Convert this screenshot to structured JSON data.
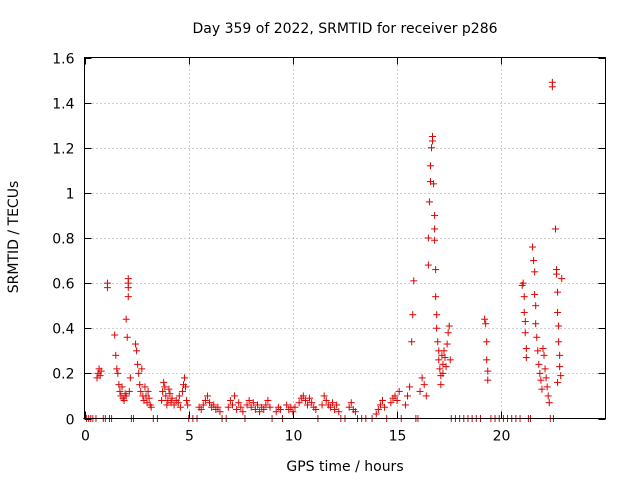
{
  "chart_data": {
    "type": "scatter",
    "title": "Day 359 of 2022, SRMTID for receiver p286",
    "xlabel": "GPS time / hours",
    "ylabel": "SRMTID / TECUs",
    "xlim": [
      0,
      25
    ],
    "ylim": [
      0,
      1.6
    ],
    "x_ticks": [
      0,
      5,
      10,
      15,
      20
    ],
    "x_tick_labels": [
      "0",
      "5",
      "10",
      "15",
      "20"
    ],
    "y_ticks": [
      0,
      0.2,
      0.4,
      0.6,
      0.8,
      1.0,
      1.2,
      1.4,
      1.6
    ],
    "y_tick_labels": [
      "0",
      "0.2",
      "0.4",
      "0.6",
      "0.8",
      "1",
      "1.2",
      "1.4",
      "1.6"
    ],
    "grid": true,
    "marker": "+",
    "marker_color": "#e00000",
    "series": [
      {
        "name": "SRMTID",
        "points": [
          [
            0.1,
            0
          ],
          [
            0.2,
            0
          ],
          [
            0.3,
            0
          ],
          [
            0.4,
            0
          ],
          [
            0.55,
            0
          ],
          [
            0.65,
            0.2
          ],
          [
            0.7,
            0.22
          ],
          [
            0.75,
            0.19
          ],
          [
            0.6,
            0.18
          ],
          [
            0.8,
            0.21
          ],
          [
            0.9,
            0
          ],
          [
            1.0,
            0
          ],
          [
            1.1,
            0.6
          ],
          [
            1.1,
            0.58
          ],
          [
            1.2,
            0
          ],
          [
            1.3,
            0
          ],
          [
            1.45,
            0.37
          ],
          [
            1.5,
            0.28
          ],
          [
            1.55,
            0.22
          ],
          [
            1.6,
            0.2
          ],
          [
            1.65,
            0.15
          ],
          [
            1.7,
            0.12
          ],
          [
            1.75,
            0.1
          ],
          [
            1.8,
            0.14
          ],
          [
            1.85,
            0.09
          ],
          [
            1.9,
            0.08
          ],
          [
            1.95,
            0.11
          ],
          [
            2.0,
            0.1
          ],
          [
            2.0,
            0.44
          ],
          [
            2.05,
            0.36
          ],
          [
            2.1,
            0.62
          ],
          [
            2.1,
            0.6
          ],
          [
            2.1,
            0.54
          ],
          [
            2.1,
            0.58
          ],
          [
            2.15,
            0.12
          ],
          [
            2.2,
            0.18
          ],
          [
            2.25,
            0
          ],
          [
            2.35,
            0
          ],
          [
            2.45,
            0.33
          ],
          [
            2.5,
            0.3
          ],
          [
            2.55,
            0.24
          ],
          [
            2.6,
            0.2
          ],
          [
            2.65,
            0.15
          ],
          [
            2.7,
            0.12
          ],
          [
            2.75,
            0.22
          ],
          [
            2.8,
            0.1
          ],
          [
            2.85,
            0.08
          ],
          [
            2.9,
            0.14
          ],
          [
            2.95,
            0.1
          ],
          [
            3.0,
            0.07
          ],
          [
            3.05,
            0.12
          ],
          [
            3.1,
            0.09
          ],
          [
            3.15,
            0.06
          ],
          [
            3.2,
            0.05
          ],
          [
            3.3,
            0
          ],
          [
            3.5,
            0
          ],
          [
            3.7,
            0.08
          ],
          [
            3.75,
            0.12
          ],
          [
            3.8,
            0.16
          ],
          [
            3.85,
            0.14
          ],
          [
            3.9,
            0.1
          ],
          [
            3.95,
            0.06
          ],
          [
            4.0,
            0.08
          ],
          [
            4.05,
            0.13
          ],
          [
            4.1,
            0.11
          ],
          [
            4.15,
            0.07
          ],
          [
            4.2,
            0.09
          ],
          [
            4.3,
            0.06
          ],
          [
            4.4,
            0.08
          ],
          [
            4.5,
            0.07
          ],
          [
            4.55,
            0.1
          ],
          [
            4.6,
            0.05
          ],
          [
            4.7,
            0.12
          ],
          [
            4.75,
            0.15
          ],
          [
            4.8,
            0.18
          ],
          [
            4.85,
            0.14
          ],
          [
            4.9,
            0.08
          ],
          [
            4.95,
            0.06
          ],
          [
            5.0,
            0
          ],
          [
            5.2,
            0
          ],
          [
            5.4,
            0
          ],
          [
            5.5,
            0.05
          ],
          [
            5.6,
            0.04
          ],
          [
            5.7,
            0.06
          ],
          [
            5.8,
            0.08
          ],
          [
            5.9,
            0.1
          ],
          [
            6.0,
            0.07
          ],
          [
            6.1,
            0.05
          ],
          [
            6.2,
            0.06
          ],
          [
            6.3,
            0.04
          ],
          [
            6.4,
            0.05
          ],
          [
            6.5,
            0.03
          ],
          [
            6.6,
            0
          ],
          [
            6.8,
            0
          ],
          [
            6.9,
            0.05
          ],
          [
            7.0,
            0.08
          ],
          [
            7.1,
            0.06
          ],
          [
            7.2,
            0.1
          ],
          [
            7.3,
            0.04
          ],
          [
            7.4,
            0.07
          ],
          [
            7.5,
            0.05
          ],
          [
            7.6,
            0.03
          ],
          [
            7.7,
            0
          ],
          [
            7.8,
            0.06
          ],
          [
            7.9,
            0.08
          ],
          [
            8.0,
            0.05
          ],
          [
            8.1,
            0.07
          ],
          [
            8.2,
            0.04
          ],
          [
            8.3,
            0.06
          ],
          [
            8.4,
            0.03
          ],
          [
            8.5,
            0.05
          ],
          [
            8.6,
            0.04
          ],
          [
            8.7,
            0.06
          ],
          [
            8.8,
            0.08
          ],
          [
            8.9,
            0.05
          ],
          [
            9.0,
            0
          ],
          [
            9.2,
            0.03
          ],
          [
            9.3,
            0.05
          ],
          [
            9.4,
            0.04
          ],
          [
            9.5,
            0
          ],
          [
            9.7,
            0.06
          ],
          [
            9.8,
            0.04
          ],
          [
            9.9,
            0.05
          ],
          [
            10.0,
            0.03
          ],
          [
            10.1,
            0.05
          ],
          [
            10.3,
            0.07
          ],
          [
            10.4,
            0.09
          ],
          [
            10.5,
            0.1
          ],
          [
            10.6,
            0.08
          ],
          [
            10.7,
            0.06
          ],
          [
            10.8,
            0.09
          ],
          [
            10.9,
            0.07
          ],
          [
            11.0,
            0.05
          ],
          [
            11.1,
            0.04
          ],
          [
            11.2,
            0
          ],
          [
            11.4,
            0.06
          ],
          [
            11.5,
            0.1
          ],
          [
            11.6,
            0.08
          ],
          [
            11.7,
            0.06
          ],
          [
            11.8,
            0.05
          ],
          [
            11.9,
            0.07
          ],
          [
            12.0,
            0.04
          ],
          [
            12.1,
            0.06
          ],
          [
            12.2,
            0.03
          ],
          [
            12.3,
            0
          ],
          [
            12.5,
            0
          ],
          [
            12.7,
            0.05
          ],
          [
            12.8,
            0.07
          ],
          [
            12.9,
            0.04
          ],
          [
            13.0,
            0.03
          ],
          [
            13.1,
            0
          ],
          [
            13.3,
            0
          ],
          [
            13.5,
            0
          ],
          [
            13.8,
            0
          ],
          [
            14.0,
            0.02
          ],
          [
            14.1,
            0.04
          ],
          [
            14.2,
            0.06
          ],
          [
            14.3,
            0.08
          ],
          [
            14.4,
            0.05
          ],
          [
            14.5,
            0
          ],
          [
            14.7,
            0.07
          ],
          [
            14.8,
            0.09
          ],
          [
            14.9,
            0.1
          ],
          [
            15.0,
            0.08
          ],
          [
            15.1,
            0.12
          ],
          [
            15.2,
            0
          ],
          [
            15.4,
            0.06
          ],
          [
            15.5,
            0.1
          ],
          [
            15.6,
            0.14
          ],
          [
            15.7,
            0.34
          ],
          [
            15.75,
            0.46
          ],
          [
            15.8,
            0.61
          ],
          [
            15.9,
            0
          ],
          [
            16.0,
            0
          ],
          [
            16.1,
            0.12
          ],
          [
            16.2,
            0.18
          ],
          [
            16.3,
            0.15
          ],
          [
            16.4,
            0.1
          ],
          [
            16.5,
            0.68
          ],
          [
            16.5,
            0.8
          ],
          [
            16.55,
            0.96
          ],
          [
            16.6,
            1.05
          ],
          [
            16.6,
            1.12
          ],
          [
            16.65,
            1.2
          ],
          [
            16.7,
            1.23
          ],
          [
            16.7,
            1.25
          ],
          [
            16.75,
            1.04
          ],
          [
            16.8,
            0.9
          ],
          [
            16.8,
            0.84
          ],
          [
            16.8,
            0.79
          ],
          [
            16.85,
            0.66
          ],
          [
            16.85,
            0.54
          ],
          [
            16.9,
            0.46
          ],
          [
            16.9,
            0.4
          ],
          [
            16.95,
            0.34
          ],
          [
            17.0,
            0.3
          ],
          [
            17.0,
            0.26
          ],
          [
            17.05,
            0.22
          ],
          [
            17.1,
            0.19
          ],
          [
            17.1,
            0.15
          ],
          [
            17.15,
            0.28
          ],
          [
            17.2,
            0.24
          ],
          [
            17.2,
            0.2
          ],
          [
            17.25,
            0.3
          ],
          [
            17.3,
            0.27
          ],
          [
            17.35,
            0.23
          ],
          [
            17.4,
            0.33
          ],
          [
            17.45,
            0.38
          ],
          [
            17.5,
            0.41
          ],
          [
            17.55,
            0.26
          ],
          [
            17.6,
            0
          ],
          [
            17.8,
            0
          ],
          [
            18.0,
            0
          ],
          [
            18.2,
            0
          ],
          [
            18.4,
            0
          ],
          [
            18.6,
            0
          ],
          [
            18.8,
            0
          ],
          [
            19.0,
            0
          ],
          [
            19.2,
            0.44
          ],
          [
            19.25,
            0.42
          ],
          [
            19.3,
            0.34
          ],
          [
            19.3,
            0.26
          ],
          [
            19.35,
            0.21
          ],
          [
            19.35,
            0.17
          ],
          [
            19.5,
            0
          ],
          [
            19.7,
            0
          ],
          [
            19.9,
            0
          ],
          [
            20.1,
            0
          ],
          [
            20.3,
            0
          ],
          [
            20.5,
            0
          ],
          [
            20.7,
            0
          ],
          [
            20.9,
            0
          ],
          [
            21.0,
            0.59
          ],
          [
            21.05,
            0.6
          ],
          [
            21.1,
            0.54
          ],
          [
            21.1,
            0.47
          ],
          [
            21.15,
            0.43
          ],
          [
            21.15,
            0.38
          ],
          [
            21.2,
            0.31
          ],
          [
            21.2,
            0.27
          ],
          [
            21.3,
            0
          ],
          [
            21.4,
            0
          ],
          [
            21.5,
            0.76
          ],
          [
            21.55,
            0.7
          ],
          [
            21.6,
            0.65
          ],
          [
            21.6,
            0.55
          ],
          [
            21.65,
            0.5
          ],
          [
            21.65,
            0.42
          ],
          [
            21.7,
            0.36
          ],
          [
            21.75,
            0.3
          ],
          [
            21.8,
            0.24
          ],
          [
            21.85,
            0.2
          ],
          [
            21.9,
            0.17
          ],
          [
            21.95,
            0.13
          ],
          [
            22.0,
            0.31
          ],
          [
            22.05,
            0.28
          ],
          [
            22.1,
            0.22
          ],
          [
            22.15,
            0.18
          ],
          [
            22.2,
            0.14
          ],
          [
            22.25,
            0.1
          ],
          [
            22.3,
            0.07
          ],
          [
            22.35,
            0
          ],
          [
            22.45,
            1.47
          ],
          [
            22.45,
            1.49
          ],
          [
            22.5,
            0
          ],
          [
            22.6,
            0.84
          ],
          [
            22.65,
            0.66
          ],
          [
            22.65,
            0.64
          ],
          [
            22.7,
            0.56
          ],
          [
            22.7,
            0.47
          ],
          [
            22.75,
            0.41
          ],
          [
            22.75,
            0.34
          ],
          [
            22.8,
            0.28
          ],
          [
            22.8,
            0.23
          ],
          [
            22.85,
            0.19
          ],
          [
            22.7,
            0.16
          ],
          [
            22.9,
            0.62
          ]
        ]
      }
    ]
  }
}
